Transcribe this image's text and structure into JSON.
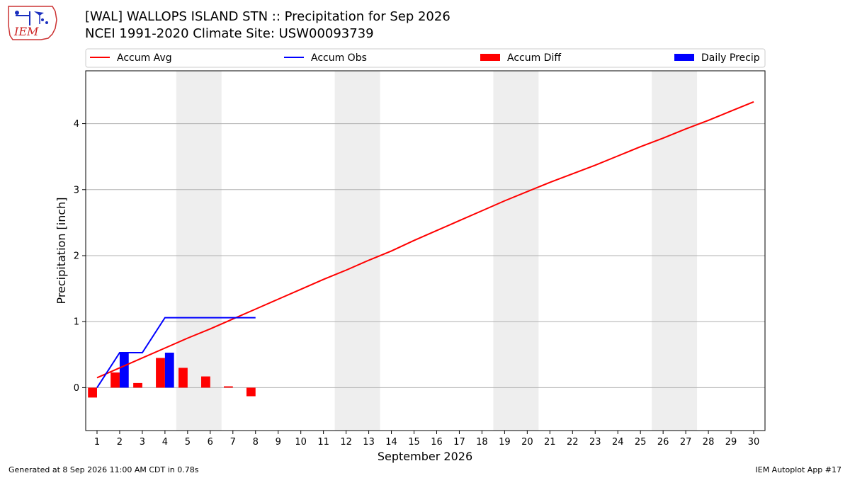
{
  "header": {
    "logo_text": "IEM",
    "title_line1": "[WAL] WALLOPS ISLAND STN :: Precipitation for Sep 2026",
    "title_line2": "NCEI 1991-2020 Climate Site: USW00093739"
  },
  "footer": {
    "generated": "Generated at 8 Sep 2026 11:00 AM CDT in 0.78s",
    "app": "IEM Autoplot App #17"
  },
  "colors": {
    "avg": "#ff0000",
    "obs": "#0000ff",
    "diff": "#ff0000",
    "daily": "#0000ff",
    "weekend_shade": "#eeeeee",
    "grid": "#b0b0b0"
  },
  "chart_data": {
    "type": "line",
    "xlabel": "September 2026",
    "ylabel": "Precipitation [inch]",
    "xlim": [
      0.5,
      30.5
    ],
    "ylim": [
      -0.65,
      4.8
    ],
    "xticks": [
      1,
      2,
      3,
      4,
      5,
      6,
      7,
      8,
      9,
      10,
      11,
      12,
      13,
      14,
      15,
      16,
      17,
      18,
      19,
      20,
      21,
      22,
      23,
      24,
      25,
      26,
      27,
      28,
      29,
      30
    ],
    "yticks": [
      0,
      1,
      2,
      3,
      4
    ],
    "grid": "horizontal",
    "legend_placement": "top",
    "legend": [
      {
        "label": "Accum Avg",
        "kind": "line",
        "color": "#ff0000"
      },
      {
        "label": "Accum Obs",
        "kind": "line",
        "color": "#0000ff"
      },
      {
        "label": "Accum Diff",
        "kind": "bar",
        "color": "#ff0000"
      },
      {
        "label": "Daily Precip",
        "kind": "bar",
        "color": "#0000ff"
      }
    ],
    "weekend_spans": [
      [
        4.5,
        6.5
      ],
      [
        11.5,
        13.5
      ],
      [
        18.5,
        20.5
      ],
      [
        25.5,
        27.5
      ]
    ],
    "series": [
      {
        "name": "Accum Avg",
        "type": "line",
        "x": [
          1,
          2,
          3,
          4,
          5,
          6,
          7,
          8,
          9,
          10,
          11,
          12,
          13,
          14,
          15,
          16,
          17,
          18,
          19,
          20,
          21,
          22,
          23,
          24,
          25,
          26,
          27,
          28,
          29,
          30
        ],
        "values": [
          0.15,
          0.3,
          0.45,
          0.6,
          0.75,
          0.89,
          1.04,
          1.19,
          1.34,
          1.49,
          1.64,
          1.78,
          1.93,
          2.07,
          2.23,
          2.38,
          2.53,
          2.68,
          2.83,
          2.97,
          3.11,
          3.24,
          3.37,
          3.51,
          3.65,
          3.78,
          3.92,
          4.05,
          4.19,
          4.33
        ]
      },
      {
        "name": "Accum Obs",
        "type": "line",
        "x": [
          1,
          2,
          3,
          4,
          5,
          6,
          7,
          8
        ],
        "values": [
          0.0,
          0.53,
          0.53,
          1.06,
          1.06,
          1.06,
          1.06,
          1.06
        ]
      },
      {
        "name": "Accum Diff",
        "type": "bar",
        "x": [
          1,
          2,
          3,
          4,
          5,
          6,
          7,
          8
        ],
        "values": [
          -0.15,
          0.23,
          0.07,
          0.45,
          0.3,
          0.17,
          0.02,
          -0.13
        ]
      },
      {
        "name": "Daily Precip",
        "type": "bar",
        "x": [
          2,
          4
        ],
        "values": [
          0.53,
          0.53
        ]
      }
    ]
  }
}
